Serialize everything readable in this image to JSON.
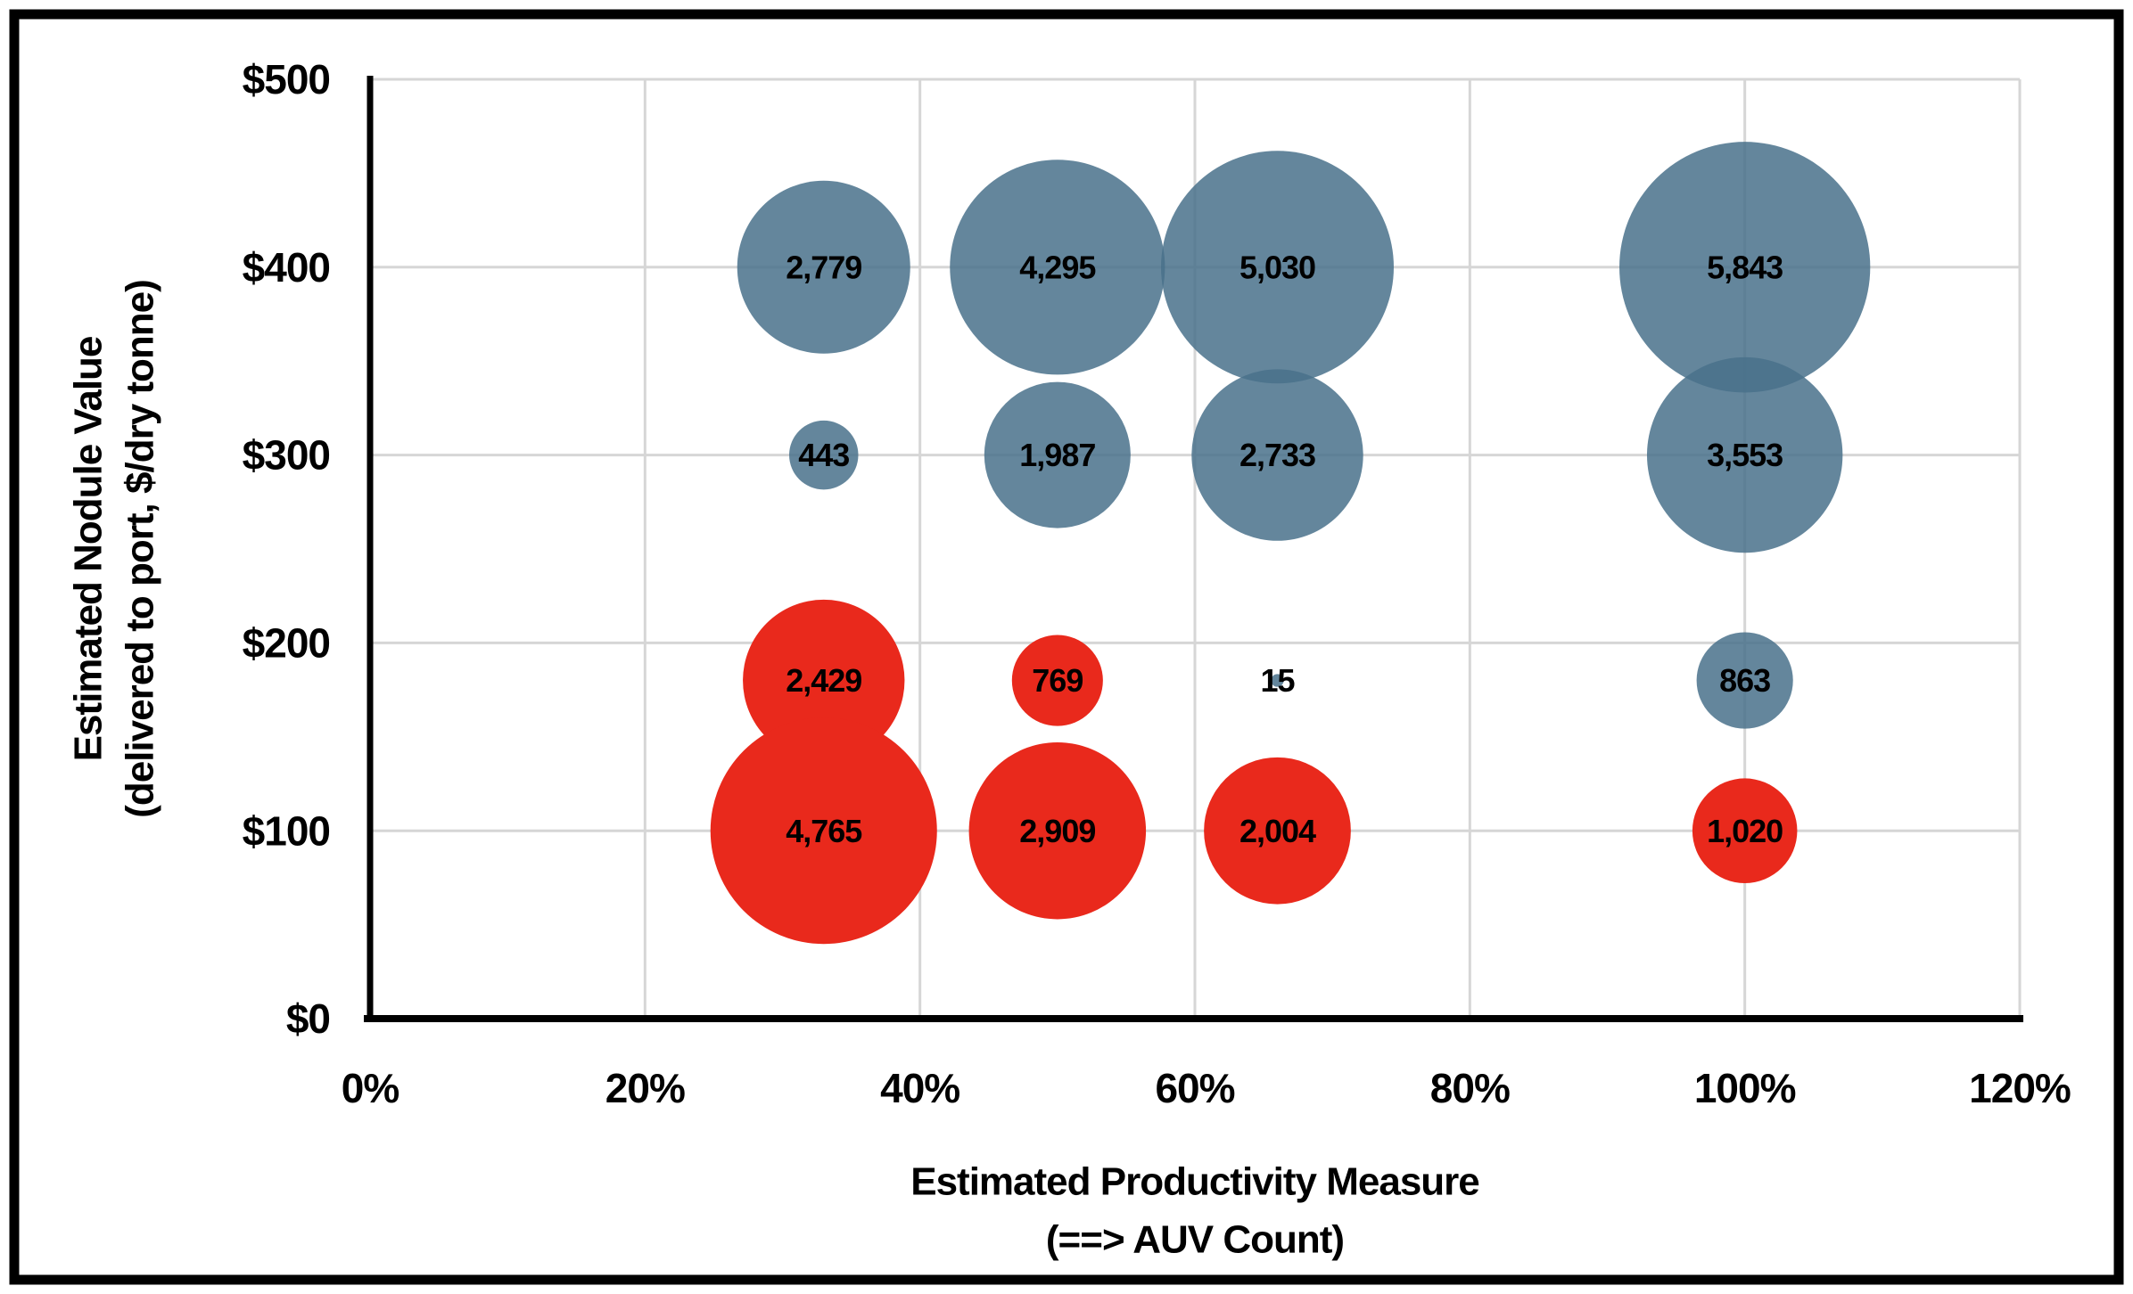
{
  "figure": {
    "background_color": "#FFFFFF",
    "border_color": "#000000",
    "gridline_color": "#D6D6D6",
    "axis_line_color": "#000000"
  },
  "chart_data": {
    "type": "scatter",
    "subtype": "bubble",
    "title": "",
    "xlabel": "Estimated Productivity Measure",
    "xlabel_line2": "(==> AUV Count)",
    "ylabel": "Estimated Nodule Value",
    "ylabel_line2": "(delivered to port, $/dry tonne)",
    "xlim": [
      0,
      120
    ],
    "ylim": [
      0,
      500
    ],
    "grid": true,
    "legend": "none",
    "x_ticks": [
      {
        "value": 0,
        "label": "0%"
      },
      {
        "value": 20,
        "label": "20%"
      },
      {
        "value": 40,
        "label": "40%"
      },
      {
        "value": 60,
        "label": "60%"
      },
      {
        "value": 80,
        "label": "80%"
      },
      {
        "value": 100,
        "label": "100%"
      },
      {
        "value": 120,
        "label": "120%"
      }
    ],
    "y_ticks": [
      {
        "value": 0,
        "label": "$0"
      },
      {
        "value": 100,
        "label": "$100"
      },
      {
        "value": 200,
        "label": "$200"
      },
      {
        "value": 300,
        "label": "$300"
      },
      {
        "value": 400,
        "label": "$400"
      },
      {
        "value": 500,
        "label": "$500"
      }
    ],
    "series": [
      {
        "name": "blue-series",
        "color": "#49718B",
        "fill_opacity": 0.85,
        "points": [
          {
            "x": 33,
            "y": 400,
            "size": 2779,
            "label": "2,779"
          },
          {
            "x": 50,
            "y": 400,
            "size": 4295,
            "label": "4,295"
          },
          {
            "x": 66,
            "y": 400,
            "size": 5030,
            "label": "5,030"
          },
          {
            "x": 100,
            "y": 400,
            "size": 5843,
            "label": "5,843"
          },
          {
            "x": 33,
            "y": 300,
            "size": 443,
            "label": "443"
          },
          {
            "x": 50,
            "y": 300,
            "size": 1987,
            "label": "1,987"
          },
          {
            "x": 66,
            "y": 300,
            "size": 2733,
            "label": "2,733"
          },
          {
            "x": 100,
            "y": 300,
            "size": 3553,
            "label": "3,553"
          },
          {
            "x": 66,
            "y": 180,
            "size": 15,
            "label": "15"
          },
          {
            "x": 100,
            "y": 180,
            "size": 863,
            "label": "863"
          }
        ]
      },
      {
        "name": "red-series",
        "color": "#E9291C",
        "fill_opacity": 1,
        "points": [
          {
            "x": 33,
            "y": 180,
            "size": 2429,
            "label": "2,429"
          },
          {
            "x": 50,
            "y": 180,
            "size": 769,
            "label": "769"
          },
          {
            "x": 33,
            "y": 100,
            "size": 4765,
            "label": "4,765"
          },
          {
            "x": 50,
            "y": 100,
            "size": 2909,
            "label": "2,909"
          },
          {
            "x": 66,
            "y": 100,
            "size": 2004,
            "label": "2,004"
          },
          {
            "x": 100,
            "y": 100,
            "size": 1020,
            "label": "1,020"
          }
        ]
      }
    ]
  }
}
